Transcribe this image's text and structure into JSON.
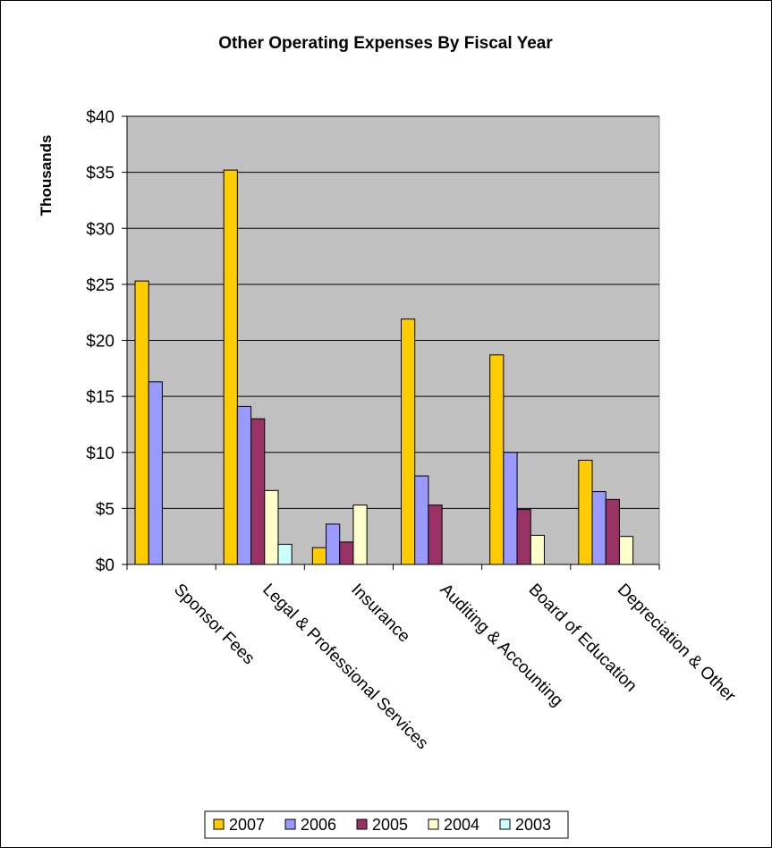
{
  "chart_data": {
    "type": "bar",
    "title": "Other Operating Expenses By Fiscal Year",
    "xlabel": "",
    "ylabel": "Thousands",
    "ylim": [
      0,
      40
    ],
    "yticks": [
      0,
      5,
      10,
      15,
      20,
      25,
      30,
      35,
      40
    ],
    "ytick_labels": [
      "$0",
      "$5",
      "$10",
      "$15",
      "$20",
      "$25",
      "$30",
      "$35",
      "$40"
    ],
    "grid": true,
    "legend_position": "bottom",
    "categories": [
      "Sponsor Fees",
      "Legal & Professional Services",
      "Insurance",
      "Auditing & Accounting",
      "Board of Education",
      "Depreciation & Other"
    ],
    "series": [
      {
        "name": "2007",
        "color": "#FFCC00",
        "values": [
          25.3,
          35.2,
          1.5,
          21.9,
          18.7,
          9.3
        ]
      },
      {
        "name": "2006",
        "color": "#9999FF",
        "values": [
          16.3,
          14.1,
          3.6,
          7.9,
          10.0,
          6.5
        ]
      },
      {
        "name": "2005",
        "color": "#993366",
        "values": [
          0,
          13.0,
          2.0,
          5.3,
          4.9,
          5.8
        ]
      },
      {
        "name": "2004",
        "color": "#FFFFCC",
        "values": [
          0,
          6.6,
          5.3,
          0,
          2.6,
          2.5
        ]
      },
      {
        "name": "2003",
        "color": "#CCFFFF",
        "values": [
          0,
          1.8,
          0,
          0,
          0,
          0
        ]
      }
    ],
    "plot_background": "#C0C0C0"
  }
}
